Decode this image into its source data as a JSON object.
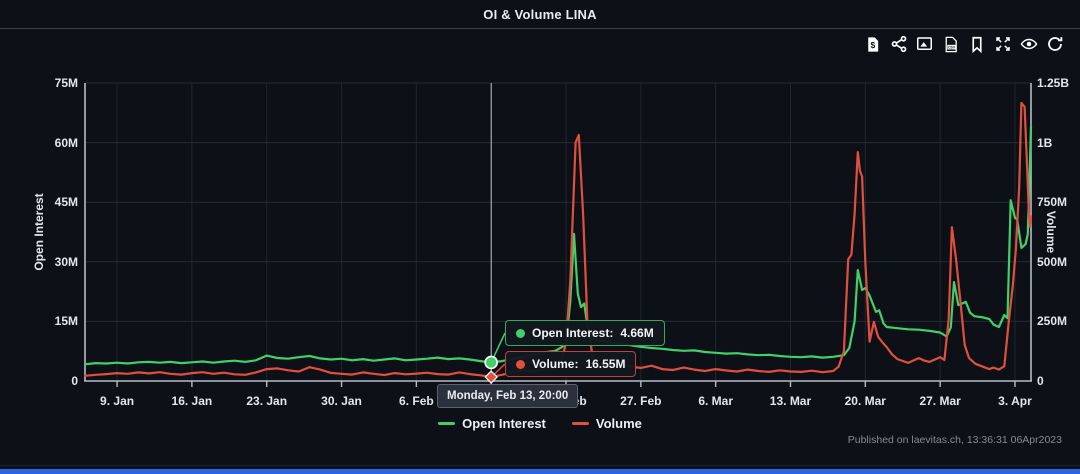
{
  "header": {
    "title": "OI & Volume LINA"
  },
  "toolbar": {
    "icons": [
      "export-dollar-file",
      "share",
      "export-image",
      "export-csv",
      "bookmark",
      "fullscreen",
      "toggle-visibility-eye",
      "refresh"
    ]
  },
  "chart_data": {
    "type": "line",
    "title": "OI & Volume LINA",
    "x_domain": [
      0,
      88.5
    ],
    "x_tick_days": [
      3,
      10,
      17,
      24,
      31,
      38,
      45,
      52,
      59,
      66,
      73,
      80,
      87
    ],
    "x_ticks": [
      "9. Jan",
      "16. Jan",
      "23. Jan",
      "30. Jan",
      "6. Feb",
      "13. Feb",
      "20. Feb",
      "27. Feb",
      "6. Mar",
      "13. Mar",
      "20. Mar",
      "27. Mar",
      "3. Apr"
    ],
    "left_axis": {
      "label": "Open Interest",
      "max": 75,
      "ticks": [
        "0",
        "15M",
        "30M",
        "45M",
        "60M",
        "75M"
      ]
    },
    "right_axis": {
      "label": "Volume",
      "max": 1250,
      "ticks": [
        "0",
        "250M",
        "500M",
        "750M",
        "1B",
        "1.25B"
      ]
    },
    "grid": true,
    "legend_position": "bottom-center",
    "series": [
      {
        "name": "Open Interest",
        "axis": "left",
        "unit": "M",
        "color": "#41d06a",
        "points": [
          [
            0,
            4.2
          ],
          [
            1,
            4.5
          ],
          [
            2,
            4.4
          ],
          [
            3,
            4.6
          ],
          [
            4,
            4.4
          ],
          [
            5,
            4.7
          ],
          [
            6,
            4.8
          ],
          [
            7,
            4.6
          ],
          [
            8,
            4.8
          ],
          [
            9,
            4.5
          ],
          [
            10,
            4.7
          ],
          [
            11,
            4.9
          ],
          [
            12,
            4.6
          ],
          [
            13,
            4.9
          ],
          [
            14,
            5.1
          ],
          [
            15,
            4.8
          ],
          [
            16,
            5.2
          ],
          [
            17,
            6.4
          ],
          [
            18,
            5.8
          ],
          [
            19,
            5.6
          ],
          [
            20,
            6.0
          ],
          [
            21,
            6.3
          ],
          [
            22,
            5.7
          ],
          [
            23,
            5.4
          ],
          [
            24,
            5.6
          ],
          [
            25,
            5.2
          ],
          [
            26,
            5.5
          ],
          [
            27,
            5.1
          ],
          [
            28,
            5.4
          ],
          [
            29,
            5.7
          ],
          [
            30,
            5.2
          ],
          [
            31,
            5.4
          ],
          [
            32,
            5.6
          ],
          [
            33,
            5.9
          ],
          [
            34,
            5.5
          ],
          [
            35,
            5.7
          ],
          [
            36,
            5.4
          ],
          [
            37,
            5.0
          ],
          [
            38,
            4.66
          ],
          [
            39,
            5.0
          ],
          [
            40,
            5.5
          ],
          [
            41,
            6.1
          ],
          [
            42,
            6.6
          ],
          [
            43,
            7.2
          ],
          [
            44,
            7.6
          ],
          [
            44.6,
            8.5
          ],
          [
            45,
            9.5
          ],
          [
            45.4,
            20
          ],
          [
            45.75,
            37
          ],
          [
            46.1,
            22
          ],
          [
            46.4,
            18.6
          ],
          [
            46.7,
            19.5
          ],
          [
            47,
            14
          ],
          [
            47.5,
            11
          ],
          [
            48,
            10.3
          ],
          [
            49,
            9.8
          ],
          [
            50,
            9.4
          ],
          [
            51,
            9.0
          ],
          [
            52,
            8.6
          ],
          [
            53,
            8.3
          ],
          [
            54,
            8.1
          ],
          [
            55,
            7.8
          ],
          [
            56,
            7.6
          ],
          [
            57,
            7.7
          ],
          [
            58,
            7.3
          ],
          [
            59,
            7.1
          ],
          [
            60,
            6.9
          ],
          [
            61,
            7.0
          ],
          [
            62,
            6.7
          ],
          [
            63,
            6.5
          ],
          [
            64,
            6.6
          ],
          [
            65,
            6.3
          ],
          [
            66,
            6.1
          ],
          [
            67,
            6.0
          ],
          [
            68,
            6.2
          ],
          [
            69,
            5.9
          ],
          [
            70,
            6.1
          ],
          [
            71,
            6.5
          ],
          [
            71.5,
            8.3
          ],
          [
            72,
            15
          ],
          [
            72.3,
            27.9
          ],
          [
            72.7,
            22.9
          ],
          [
            73,
            23.4
          ],
          [
            73.4,
            21.5
          ],
          [
            74,
            17.4
          ],
          [
            74.3,
            17.8
          ],
          [
            74.7,
            14.5
          ],
          [
            75,
            13.6
          ],
          [
            76,
            13.3
          ],
          [
            77,
            13.0
          ],
          [
            78,
            12.9
          ],
          [
            79,
            12.6
          ],
          [
            80,
            12.2
          ],
          [
            80.6,
            11.2
          ],
          [
            81,
            13.5
          ],
          [
            81.3,
            24.9
          ],
          [
            81.7,
            19.1
          ],
          [
            82,
            19.4
          ],
          [
            82.4,
            19.9
          ],
          [
            82.8,
            17.2
          ],
          [
            83.2,
            16.3
          ],
          [
            84,
            16.0
          ],
          [
            84.6,
            15.6
          ],
          [
            85,
            14.2
          ],
          [
            85.5,
            13.6
          ],
          [
            86,
            16.6
          ],
          [
            86.3,
            15.8
          ],
          [
            86.6,
            45.5
          ],
          [
            87,
            41
          ],
          [
            87.2,
            40.8
          ],
          [
            87.6,
            33.5
          ],
          [
            88,
            34.5
          ],
          [
            88.2,
            37
          ],
          [
            88.5,
            64
          ]
        ]
      },
      {
        "name": "Volume",
        "axis": "right",
        "unit": "M",
        "color": "#e0503c",
        "points": [
          [
            0,
            22
          ],
          [
            1,
            26
          ],
          [
            2,
            29
          ],
          [
            3,
            33
          ],
          [
            4,
            30
          ],
          [
            5,
            36
          ],
          [
            6,
            32
          ],
          [
            7,
            37
          ],
          [
            8,
            30
          ],
          [
            9,
            27
          ],
          [
            10,
            33
          ],
          [
            11,
            37
          ],
          [
            12,
            30
          ],
          [
            13,
            35
          ],
          [
            14,
            28
          ],
          [
            15,
            26
          ],
          [
            16,
            36
          ],
          [
            17,
            50
          ],
          [
            18,
            53
          ],
          [
            19,
            45
          ],
          [
            20,
            40
          ],
          [
            21,
            58
          ],
          [
            22,
            48
          ],
          [
            23,
            34
          ],
          [
            24,
            30
          ],
          [
            25,
            27
          ],
          [
            26,
            36
          ],
          [
            27,
            30
          ],
          [
            28,
            25
          ],
          [
            29,
            33
          ],
          [
            30,
            28
          ],
          [
            31,
            31
          ],
          [
            32,
            35
          ],
          [
            33,
            29
          ],
          [
            34,
            27
          ],
          [
            35,
            36
          ],
          [
            36,
            29
          ],
          [
            37,
            24
          ],
          [
            38,
            16.55
          ],
          [
            39,
            26
          ],
          [
            40,
            36
          ],
          [
            41,
            46
          ],
          [
            42,
            39
          ],
          [
            43,
            49
          ],
          [
            44,
            55
          ],
          [
            44.6,
            90
          ],
          [
            45,
            160
          ],
          [
            45.4,
            420
          ],
          [
            45.9,
            1000
          ],
          [
            46.2,
            1032
          ],
          [
            46.6,
            700
          ],
          [
            47,
            250
          ],
          [
            47.5,
            100
          ],
          [
            48,
            68
          ],
          [
            49,
            64
          ],
          [
            50,
            74
          ],
          [
            51,
            60
          ],
          [
            52,
            55
          ],
          [
            53,
            64
          ],
          [
            54,
            50
          ],
          [
            55,
            46
          ],
          [
            56,
            56
          ],
          [
            57,
            48
          ],
          [
            58,
            42
          ],
          [
            59,
            50
          ],
          [
            60,
            44
          ],
          [
            61,
            40
          ],
          [
            62,
            48
          ],
          [
            63,
            42
          ],
          [
            64,
            38
          ],
          [
            65,
            45
          ],
          [
            66,
            40
          ],
          [
            67,
            38
          ],
          [
            68,
            43
          ],
          [
            69,
            37
          ],
          [
            70,
            42
          ],
          [
            70.5,
            60
          ],
          [
            71,
            125
          ],
          [
            71.4,
            510
          ],
          [
            71.7,
            530
          ],
          [
            72,
            700
          ],
          [
            72.3,
            960
          ],
          [
            72.5,
            880
          ],
          [
            72.7,
            858
          ],
          [
            73,
            500
          ],
          [
            73.4,
            165
          ],
          [
            73.8,
            248
          ],
          [
            74.2,
            186
          ],
          [
            74.6,
            162
          ],
          [
            75,
            142
          ],
          [
            75.5,
            112
          ],
          [
            76,
            92
          ],
          [
            77,
            76
          ],
          [
            78,
            96
          ],
          [
            78.5,
            86
          ],
          [
            79,
            80
          ],
          [
            80,
            100
          ],
          [
            80.4,
            88
          ],
          [
            80.8,
            260
          ],
          [
            81.1,
            645
          ],
          [
            81.5,
            505
          ],
          [
            81.9,
            330
          ],
          [
            82.3,
            152
          ],
          [
            82.7,
            96
          ],
          [
            83.3,
            72
          ],
          [
            84,
            60
          ],
          [
            84.6,
            50
          ],
          [
            85,
            56
          ],
          [
            85.5,
            48
          ],
          [
            86,
            62
          ],
          [
            86.4,
            243
          ],
          [
            86.8,
            400
          ],
          [
            87.1,
            560
          ],
          [
            87.4,
            814
          ],
          [
            87.6,
            1166
          ],
          [
            87.9,
            1150
          ],
          [
            88.1,
            940
          ],
          [
            88.3,
            700
          ],
          [
            88.4,
            648
          ],
          [
            88.5,
            690
          ]
        ]
      }
    ]
  },
  "tooltip": {
    "crosshair_day": 38.0,
    "oi_label": "Open Interest:",
    "oi_value": "4.66M",
    "oi_numeric": 4.66,
    "vol_label": "Volume:",
    "vol_value": "16.55M",
    "vol_numeric": 16.55,
    "date": "Monday, Feb 13, 20:00"
  },
  "footer": {
    "published": "Published on laevitas.ch, 13:36:31 06Apr2023"
  },
  "colors": {
    "background": "#0d1117",
    "green": "#41d06a",
    "red": "#e0503c",
    "axis_line": "#b6bdc7",
    "grid": "#242b34",
    "grid_vertical": "#1f2630",
    "crosshair": "#dfe3e8",
    "tooltip_border_green": "#3aa85c",
    "tooltip_border_red": "#c04434",
    "text": "#e3e6eb",
    "muted_text": "#848b94",
    "accent_bar": "#2c63e0"
  }
}
